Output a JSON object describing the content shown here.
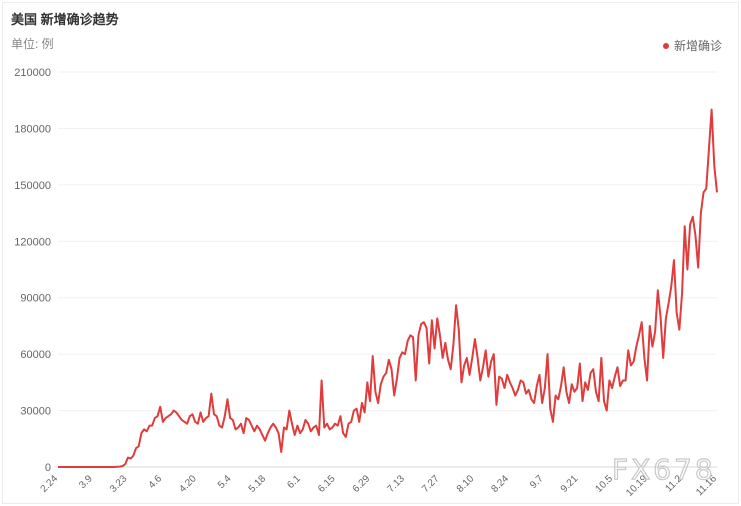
{
  "header": {
    "title": "美国 新增确诊趋势",
    "unit": "单位: 例"
  },
  "legend": {
    "label": "新增确诊",
    "color": "#e03c3c",
    "placement": "top-right"
  },
  "watermark": "FX678",
  "chart_data": {
    "type": "line",
    "title": "美国 新增确诊趋势",
    "ylabel": "单位: 例",
    "ylim": [
      0,
      210000
    ],
    "yticks": [
      0,
      30000,
      60000,
      90000,
      120000,
      150000,
      180000,
      210000
    ],
    "xticks": [
      "2.24",
      "3.9",
      "3.23",
      "4.6",
      "4.20",
      "5.4",
      "5.18",
      "6.1",
      "6.15",
      "6.29",
      "7.13",
      "7.27",
      "8.10",
      "8.24",
      "9.7",
      "9.21",
      "10.5",
      "10.19",
      "11.2",
      "11.16"
    ],
    "grid": true,
    "series": [
      {
        "name": "新增确诊",
        "color": "#e03c3c",
        "values": [
          0,
          0,
          0,
          0,
          0,
          0,
          0,
          0,
          0,
          0,
          0,
          0,
          0,
          0,
          0,
          0,
          0,
          0,
          0,
          0,
          0,
          0,
          100,
          200,
          500,
          1500,
          5000,
          4500,
          6000,
          10000,
          11000,
          18000,
          20000,
          19000,
          22000,
          22000,
          26000,
          27000,
          32000,
          24000,
          26000,
          27000,
          28000,
          30000,
          29000,
          27000,
          25000,
          24000,
          23000,
          27000,
          28000,
          24000,
          23000,
          29000,
          24000,
          26000,
          27000,
          39000,
          28000,
          27000,
          22000,
          21000,
          27000,
          36000,
          26000,
          25000,
          20000,
          21000,
          23000,
          18000,
          26000,
          25000,
          22000,
          19000,
          22000,
          20000,
          17000,
          14000,
          18000,
          21000,
          23000,
          21000,
          18000,
          8000,
          21000,
          20000,
          30000,
          23000,
          17000,
          22000,
          18000,
          20000,
          25000,
          23000,
          19000,
          21000,
          22000,
          17000,
          46000,
          21000,
          23000,
          20000,
          21000,
          23000,
          22000,
          27000,
          18000,
          16000,
          23000,
          24000,
          30000,
          31000,
          24000,
          34000,
          29000,
          45000,
          35000,
          59000,
          40000,
          34000,
          44000,
          48000,
          50000,
          57000,
          52000,
          38000,
          47000,
          58000,
          61000,
          60000,
          67000,
          70000,
          69000,
          46000,
          70000,
          76000,
          77000,
          74000,
          55000,
          78000,
          63000,
          79000,
          70000,
          58000,
          66000,
          57000,
          52000,
          65000,
          86000,
          73000,
          45000,
          54000,
          58000,
          49000,
          58000,
          68000,
          58000,
          46000,
          53000,
          62000,
          48000,
          56000,
          60000,
          33000,
          48000,
          47000,
          42000,
          49000,
          45000,
          42000,
          38000,
          41000,
          46000,
          45000,
          39000,
          41000,
          36000,
          34000,
          43000,
          49000,
          34000,
          42000,
          60000,
          31000,
          24000,
          38000,
          36000,
          43000,
          53000,
          40000,
          34000,
          44000,
          40000,
          42000,
          55000,
          35000,
          45000,
          41000,
          50000,
          52000,
          40000,
          35000,
          58000,
          35000,
          30000,
          46000,
          42000,
          48000,
          53000,
          43000,
          46000,
          46000,
          62000,
          54000,
          56000,
          64000,
          70000,
          77000,
          58000,
          46000,
          75000,
          64000,
          72000,
          94000,
          80000,
          58000,
          79000,
          87000,
          96000,
          110000,
          82000,
          73000,
          92000,
          128000,
          105000,
          129000,
          133000,
          123000,
          106000,
          135000,
          146000,
          148000,
          169000,
          190000,
          160000,
          146000
        ]
      }
    ]
  }
}
